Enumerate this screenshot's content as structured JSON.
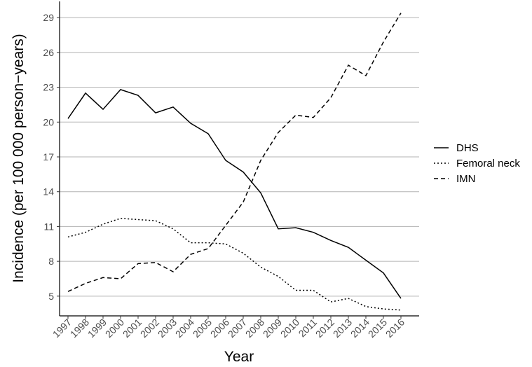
{
  "chart_data": {
    "type": "line",
    "title": "",
    "xlabel": "Year",
    "ylabel": "Incidence (per 100 000 person−years)",
    "x": [
      1997,
      1998,
      1999,
      2000,
      2001,
      2002,
      2003,
      2004,
      2005,
      2006,
      2007,
      2008,
      2009,
      2010,
      2011,
      2012,
      2013,
      2014,
      2015,
      2016
    ],
    "x_tick_labels": [
      "1997",
      "1998",
      "1999",
      "2000",
      "2001",
      "2002",
      "2003",
      "2004",
      "2005",
      "2006",
      "2007",
      "2008",
      "2009",
      "2010",
      "2011",
      "2012",
      "2013",
      "2014",
      "2015",
      "2016"
    ],
    "y_ticks": [
      5,
      8,
      11,
      14,
      17,
      20,
      23,
      26,
      29
    ],
    "y_tick_labels": [
      "5",
      "8",
      "11",
      "14",
      "17",
      "20",
      "23",
      "26",
      "29"
    ],
    "ylim": [
      3.3,
      30.4
    ],
    "grid": "horizontal major",
    "legend_position": "right",
    "series": [
      {
        "name": "DHS",
        "dash": "solid",
        "values": [
          20.3,
          22.5,
          21.1,
          22.8,
          22.3,
          20.8,
          21.3,
          19.9,
          19.0,
          16.7,
          15.7,
          13.9,
          10.8,
          10.9,
          10.5,
          9.8,
          9.2,
          8.1,
          7.0,
          4.8
        ]
      },
      {
        "name": "Femoral neck",
        "dash": "dotted",
        "values": [
          10.1,
          10.5,
          11.2,
          11.7,
          11.6,
          11.5,
          10.8,
          9.6,
          9.6,
          9.5,
          8.7,
          7.5,
          6.7,
          5.5,
          5.5,
          4.5,
          4.8,
          4.1,
          3.9,
          3.8
        ]
      },
      {
        "name": "IMN",
        "dash": "dashed",
        "values": [
          5.4,
          6.1,
          6.6,
          6.5,
          7.8,
          7.9,
          7.1,
          8.6,
          9.1,
          11.1,
          13.1,
          16.7,
          19.1,
          20.6,
          20.4,
          22.1,
          24.9,
          24.0,
          26.9,
          29.4
        ]
      }
    ]
  }
}
